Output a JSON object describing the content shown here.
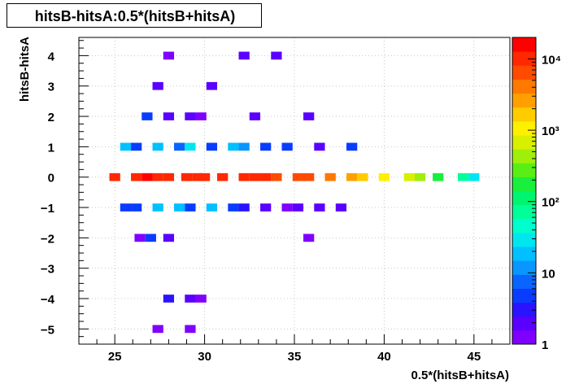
{
  "chart_data": {
    "type": "heatmap",
    "title": "hitsB-hitsA:0.5*(hitsB+hitsA)",
    "xlabel": "0.5*(hitsB+hitsA)",
    "ylabel": "hitsB-hitsA",
    "xlim": [
      23.0,
      47.0
    ],
    "ylim": [
      -5.5,
      4.6
    ],
    "x_ticks": [
      "25",
      "30",
      "35",
      "40",
      "45"
    ],
    "y_ticks": [
      "−5",
      "−4",
      "−3",
      "−2",
      "−1",
      "0",
      "1",
      "2",
      "3",
      "4"
    ],
    "z_scale": "log",
    "z_range": [
      1,
      20000
    ],
    "z_ticks": [
      "1",
      "10",
      "10²",
      "10³",
      "10⁴"
    ],
    "grid": true,
    "bin_width": 0.6,
    "bin_height": 0.26,
    "cells": [
      {
        "x": 25.0,
        "y": 0,
        "v": 9000
      },
      {
        "x": 26.2,
        "y": 0,
        "v": 12000
      },
      {
        "x": 26.8,
        "y": 0,
        "v": 14000
      },
      {
        "x": 27.4,
        "y": 0,
        "v": 12000
      },
      {
        "x": 28.0,
        "y": 0,
        "v": 10000
      },
      {
        "x": 29.0,
        "y": 0,
        "v": 11000
      },
      {
        "x": 29.6,
        "y": 0,
        "v": 10000
      },
      {
        "x": 30.0,
        "y": 0,
        "v": 10000
      },
      {
        "x": 31.0,
        "y": 0,
        "v": 9000
      },
      {
        "x": 32.2,
        "y": 0,
        "v": 12000
      },
      {
        "x": 32.8,
        "y": 0,
        "v": 10000
      },
      {
        "x": 33.4,
        "y": 0,
        "v": 9000
      },
      {
        "x": 34.0,
        "y": 0,
        "v": 7000
      },
      {
        "x": 35.2,
        "y": 0,
        "v": 6000
      },
      {
        "x": 35.8,
        "y": 0,
        "v": 5500
      },
      {
        "x": 37.0,
        "y": 0,
        "v": 3500
      },
      {
        "x": 38.2,
        "y": 0,
        "v": 3000
      },
      {
        "x": 38.8,
        "y": 0,
        "v": 2000
      },
      {
        "x": 40.0,
        "y": 0,
        "v": 1000
      },
      {
        "x": 41.4,
        "y": 0,
        "v": 700
      },
      {
        "x": 42.0,
        "y": 0,
        "v": 350
      },
      {
        "x": 43.0,
        "y": 0,
        "v": 200
      },
      {
        "x": 44.4,
        "y": 0,
        "v": 60
      },
      {
        "x": 45.0,
        "y": 0,
        "v": 25
      },
      {
        "x": 25.6,
        "y": 1,
        "v": 18
      },
      {
        "x": 26.2,
        "y": 1,
        "v": 6
      },
      {
        "x": 27.4,
        "y": 1,
        "v": 20
      },
      {
        "x": 28.6,
        "y": 1,
        "v": 8
      },
      {
        "x": 29.2,
        "y": 1,
        "v": 25
      },
      {
        "x": 30.4,
        "y": 1,
        "v": 5
      },
      {
        "x": 31.6,
        "y": 1,
        "v": 20
      },
      {
        "x": 32.2,
        "y": 1,
        "v": 10
      },
      {
        "x": 33.4,
        "y": 1,
        "v": 6
      },
      {
        "x": 34.6,
        "y": 1,
        "v": 5
      },
      {
        "x": 36.4,
        "y": 1,
        "v": 2
      },
      {
        "x": 38.2,
        "y": 1,
        "v": 5
      },
      {
        "x": 25.6,
        "y": -1,
        "v": 6
      },
      {
        "x": 26.2,
        "y": -1,
        "v": 5
      },
      {
        "x": 27.4,
        "y": -1,
        "v": 20
      },
      {
        "x": 28.6,
        "y": -1,
        "v": 15
      },
      {
        "x": 29.2,
        "y": -1,
        "v": 5
      },
      {
        "x": 30.4,
        "y": -1,
        "v": 18
      },
      {
        "x": 31.6,
        "y": -1,
        "v": 5
      },
      {
        "x": 32.2,
        "y": -1,
        "v": 3
      },
      {
        "x": 33.4,
        "y": -1,
        "v": 2
      },
      {
        "x": 34.6,
        "y": -1,
        "v": 1
      },
      {
        "x": 35.2,
        "y": -1,
        "v": 2
      },
      {
        "x": 36.4,
        "y": -1,
        "v": 2
      },
      {
        "x": 37.6,
        "y": -1,
        "v": 2
      },
      {
        "x": 26.8,
        "y": 2,
        "v": 4
      },
      {
        "x": 28.0,
        "y": 2,
        "v": 2
      },
      {
        "x": 29.2,
        "y": 2,
        "v": 2
      },
      {
        "x": 29.8,
        "y": 2,
        "v": 1
      },
      {
        "x": 32.8,
        "y": 2,
        "v": 2
      },
      {
        "x": 35.8,
        "y": 2,
        "v": 2
      },
      {
        "x": 26.4,
        "y": -2,
        "v": 1
      },
      {
        "x": 27.0,
        "y": -2,
        "v": 4
      },
      {
        "x": 28.0,
        "y": -2,
        "v": 2
      },
      {
        "x": 35.8,
        "y": -2,
        "v": 1
      },
      {
        "x": 27.4,
        "y": 3,
        "v": 2
      },
      {
        "x": 30.4,
        "y": 3,
        "v": 2
      },
      {
        "x": 28.0,
        "y": 4,
        "v": 1
      },
      {
        "x": 32.2,
        "y": 4,
        "v": 2
      },
      {
        "x": 34.0,
        "y": 4,
        "v": 2
      },
      {
        "x": 28.0,
        "y": -4,
        "v": 3
      },
      {
        "x": 29.2,
        "y": -4,
        "v": 2
      },
      {
        "x": 29.8,
        "y": -4,
        "v": 1
      },
      {
        "x": 27.4,
        "y": -5,
        "v": 1
      },
      {
        "x": 29.2,
        "y": -5,
        "v": 1
      }
    ]
  },
  "colors": {
    "palette": [
      "#7f00ff",
      "#5a00ff",
      "#2a14ff",
      "#0a3cff",
      "#0a64ff",
      "#0a96ff",
      "#00c0ff",
      "#00e6ef",
      "#00ffcc",
      "#00ff99",
      "#00f56e",
      "#19ef3c",
      "#5aef14",
      "#a0ef0a",
      "#d8f000",
      "#fff000",
      "#ffcc00",
      "#ffa000",
      "#ff7800",
      "#ff4b00",
      "#ff2800",
      "#ff0000"
    ],
    "grid": "#c8c8c8",
    "axis": "#000000"
  }
}
